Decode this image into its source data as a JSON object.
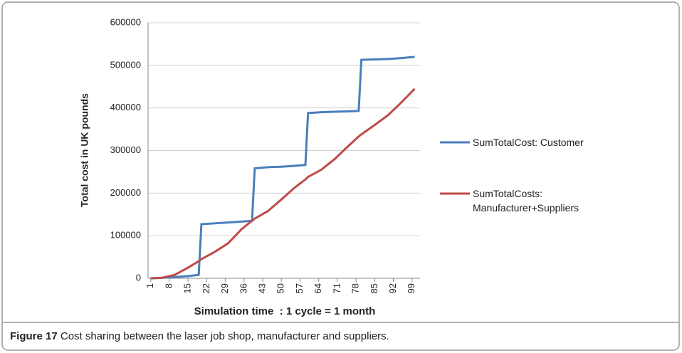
{
  "chart_data": {
    "type": "line",
    "y_label": "Total cost in UK pounds",
    "x_label": "Simulation time  : 1 cycle = 1 month",
    "x": [
      1,
      5,
      10,
      15,
      19,
      20,
      25,
      30,
      35,
      39,
      40,
      45,
      50,
      55,
      59,
      60,
      65,
      70,
      75,
      79,
      80,
      85,
      90,
      95,
      100
    ],
    "series": [
      {
        "name": "SumTotalCost: Customer",
        "color": "#4a7ebb",
        "values": [
          0,
          1000,
          3000,
          5000,
          8000,
          127000,
          129000,
          131000,
          133000,
          135000,
          258000,
          261000,
          262000,
          264000,
          266000,
          388000,
          390000,
          391000,
          392000,
          393000,
          513000,
          514000,
          515000,
          517000,
          520000
        ]
      },
      {
        "name": "SumTotalCosts: Manufacturer+Suppliers",
        "color": "#be4b48",
        "values": [
          0,
          1000,
          8000,
          25000,
          40000,
          45000,
          62000,
          82000,
          115000,
          135000,
          140000,
          158000,
          185000,
          213000,
          232000,
          238000,
          255000,
          280000,
          310000,
          333000,
          338000,
          360000,
          383000,
          413000,
          445000
        ]
      }
    ],
    "xlim": [
      0,
      102
    ],
    "xticks": [
      1,
      8,
      15,
      22,
      29,
      36,
      43,
      50,
      57,
      64,
      71,
      78,
      85,
      92,
      99
    ],
    "ylim": [
      0,
      600000
    ],
    "yticks": [
      0,
      100000,
      200000,
      300000,
      400000,
      500000,
      600000
    ],
    "grid": true,
    "legend": "right"
  },
  "caption": {
    "label": "Figure 17",
    "text": "Cost sharing between the laser job shop, manufacturer and suppliers."
  }
}
